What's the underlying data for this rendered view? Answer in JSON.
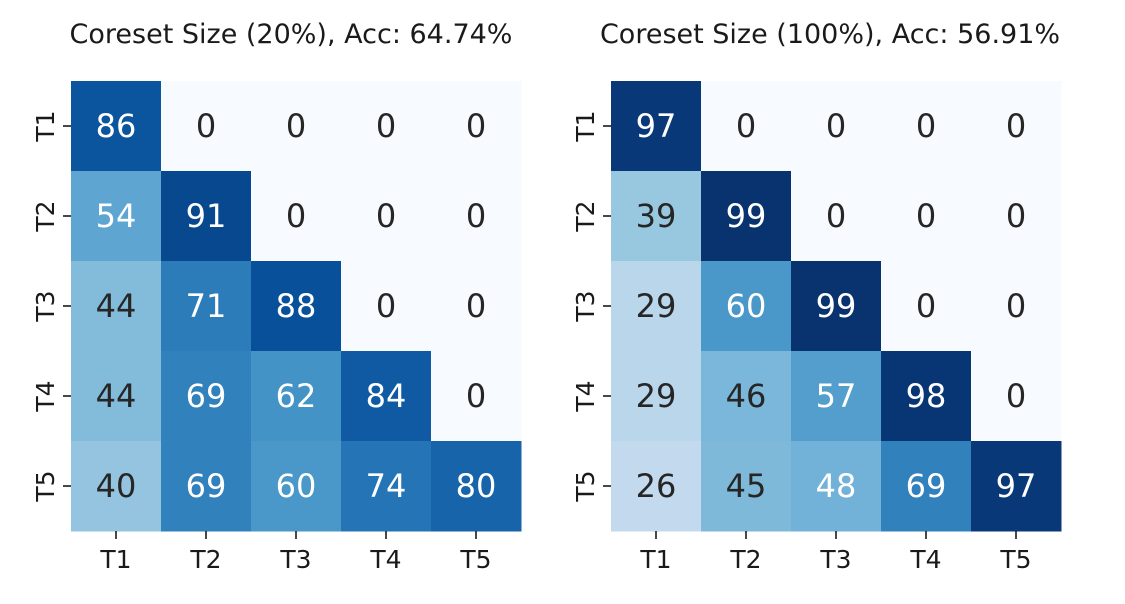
{
  "chart_data": [
    {
      "type": "heatmap",
      "title": "Coreset Size (20%), Acc: 64.74%",
      "xlabel": "",
      "ylabel": "",
      "x_categories": [
        "T1",
        "T2",
        "T3",
        "T4",
        "T5"
      ],
      "y_categories": [
        "T1",
        "T2",
        "T3",
        "T4",
        "T5"
      ],
      "values": [
        [
          86,
          0,
          0,
          0,
          0
        ],
        [
          54,
          91,
          0,
          0,
          0
        ],
        [
          44,
          71,
          88,
          0,
          0
        ],
        [
          44,
          69,
          62,
          84,
          0
        ],
        [
          40,
          69,
          60,
          74,
          80
        ]
      ],
      "colormap": "Blues",
      "vmin": 0,
      "vmax": 100,
      "colorbar": false
    },
    {
      "type": "heatmap",
      "title": "Coreset Size (100%), Acc: 56.91%",
      "xlabel": "",
      "ylabel": "",
      "x_categories": [
        "T1",
        "T2",
        "T3",
        "T4",
        "T5"
      ],
      "y_categories": [
        "T1",
        "T2",
        "T3",
        "T4",
        "T5"
      ],
      "values": [
        [
          97,
          0,
          0,
          0,
          0
        ],
        [
          39,
          99,
          0,
          0,
          0
        ],
        [
          29,
          60,
          99,
          0,
          0
        ],
        [
          29,
          46,
          57,
          98,
          0
        ],
        [
          26,
          45,
          48,
          69,
          97
        ]
      ],
      "colormap": "Blues",
      "vmin": 0,
      "vmax": 100,
      "colorbar": false
    }
  ]
}
